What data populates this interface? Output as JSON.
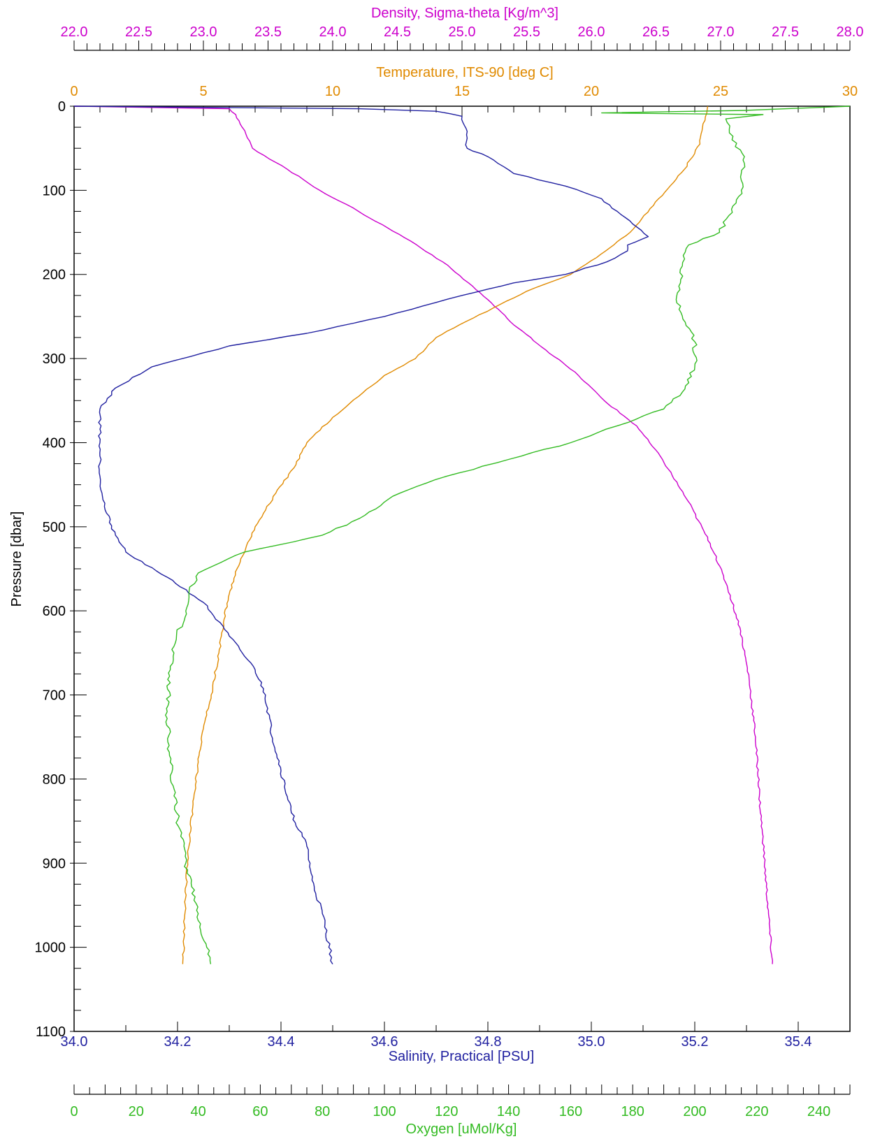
{
  "chart_data": {
    "type": "line",
    "title": "",
    "ylabel": "Pressure [dbar]",
    "ylim": [
      1100,
      0
    ],
    "yticks": [
      0,
      100,
      200,
      300,
      400,
      500,
      600,
      700,
      800,
      900,
      1000,
      1100
    ],
    "axes": {
      "density": {
        "label": "Density, Sigma-theta [Kg/m^3]",
        "range": [
          22.0,
          28.0
        ],
        "ticks": [
          "22.0",
          "22.5",
          "23.0",
          "23.5",
          "24.0",
          "24.5",
          "25.0",
          "25.5",
          "26.0",
          "26.5",
          "27.0",
          "27.5",
          "28.0"
        ],
        "color": "#cc00cc"
      },
      "temperature": {
        "label": "Temperature, ITS-90 [deg C]",
        "range": [
          0,
          30
        ],
        "ticks": [
          "0",
          "5",
          "10",
          "15",
          "20",
          "25",
          "30"
        ],
        "color": "#e08a00"
      },
      "salinity": {
        "label": "Salinity, Practical [PSU]",
        "range": [
          34.0,
          35.5
        ],
        "ticks": [
          "34.0",
          "34.2",
          "34.4",
          "34.6",
          "34.8",
          "35.0",
          "35.2",
          "35.4"
        ],
        "color": "#2020a0"
      },
      "oxygen": {
        "label": "Oxygen [uMol/Kg]",
        "range": [
          0,
          250
        ],
        "ticks": [
          "0",
          "20",
          "40",
          "60",
          "80",
          "100",
          "120",
          "140",
          "160",
          "180",
          "200",
          "220",
          "240"
        ],
        "color": "#33bb22"
      }
    },
    "series": [
      {
        "axis": "density",
        "color": "#cc00cc",
        "points": [
          [
            22.0,
            0
          ],
          [
            23.2,
            3
          ],
          [
            23.25,
            10
          ],
          [
            23.3,
            25
          ],
          [
            23.38,
            50
          ],
          [
            23.65,
            75
          ],
          [
            23.9,
            100
          ],
          [
            24.2,
            125
          ],
          [
            24.6,
            160
          ],
          [
            24.85,
            185
          ],
          [
            25.05,
            210
          ],
          [
            25.2,
            230
          ],
          [
            25.4,
            260
          ],
          [
            25.65,
            290
          ],
          [
            25.9,
            320
          ],
          [
            26.1,
            350
          ],
          [
            26.35,
            380
          ],
          [
            26.55,
            420
          ],
          [
            26.75,
            470
          ],
          [
            26.92,
            520
          ],
          [
            27.05,
            570
          ],
          [
            27.15,
            620
          ],
          [
            27.22,
            680
          ],
          [
            27.27,
            750
          ],
          [
            27.3,
            820
          ],
          [
            27.34,
            900
          ],
          [
            27.37,
            960
          ],
          [
            27.4,
            1020
          ]
        ]
      },
      {
        "axis": "temperature",
        "color": "#e08a00",
        "points": [
          [
            24.5,
            0
          ],
          [
            24.3,
            25
          ],
          [
            24.2,
            45
          ],
          [
            23.6,
            75
          ],
          [
            22.6,
            110
          ],
          [
            21.5,
            150
          ],
          [
            20.2,
            180
          ],
          [
            19.2,
            200
          ],
          [
            17.5,
            220
          ],
          [
            16.2,
            240
          ],
          [
            14.9,
            260
          ],
          [
            14.0,
            275
          ],
          [
            13.2,
            300
          ],
          [
            12.0,
            320
          ],
          [
            11.0,
            345
          ],
          [
            10.0,
            370
          ],
          [
            9.0,
            400
          ],
          [
            8.5,
            430
          ],
          [
            7.8,
            460
          ],
          [
            7.0,
            500
          ],
          [
            6.6,
            530
          ],
          [
            6.3,
            550
          ],
          [
            6.0,
            580
          ],
          [
            5.8,
            610
          ],
          [
            5.6,
            650
          ],
          [
            5.3,
            700
          ],
          [
            5.0,
            740
          ],
          [
            4.8,
            780
          ],
          [
            4.6,
            830
          ],
          [
            4.4,
            890
          ],
          [
            4.3,
            950
          ],
          [
            4.2,
            1020
          ]
        ]
      },
      {
        "axis": "salinity",
        "color": "#2020a0",
        "points": [
          [
            34.0,
            0
          ],
          [
            34.55,
            3
          ],
          [
            34.7,
            6
          ],
          [
            34.75,
            12
          ],
          [
            34.76,
            30
          ],
          [
            34.76,
            50
          ],
          [
            34.8,
            60
          ],
          [
            34.85,
            80
          ],
          [
            34.95,
            95
          ],
          [
            35.02,
            110
          ],
          [
            35.08,
            140
          ],
          [
            35.11,
            155
          ],
          [
            35.07,
            165
          ],
          [
            35.07,
            172
          ],
          [
            35.03,
            185
          ],
          [
            34.95,
            200
          ],
          [
            34.85,
            210
          ],
          [
            34.75,
            225
          ],
          [
            34.6,
            250
          ],
          [
            34.45,
            270
          ],
          [
            34.3,
            285
          ],
          [
            34.15,
            310
          ],
          [
            34.08,
            335
          ],
          [
            34.05,
            360
          ],
          [
            34.05,
            400
          ],
          [
            34.05,
            440
          ],
          [
            34.06,
            480
          ],
          [
            34.08,
            510
          ],
          [
            34.1,
            530
          ],
          [
            34.18,
            560
          ],
          [
            34.25,
            590
          ],
          [
            34.3,
            630
          ],
          [
            34.35,
            670
          ],
          [
            34.37,
            700
          ],
          [
            34.38,
            740
          ],
          [
            34.4,
            790
          ],
          [
            34.42,
            840
          ],
          [
            34.45,
            880
          ],
          [
            34.46,
            920
          ],
          [
            34.48,
            960
          ],
          [
            34.5,
            1020
          ]
        ]
      },
      {
        "axis": "oxygen",
        "color": "#33bb22",
        "points": [
          [
            250,
            0
          ],
          [
            216,
            5
          ],
          [
            170,
            8
          ],
          [
            222,
            10
          ],
          [
            210,
            15
          ],
          [
            212,
            40
          ],
          [
            216,
            60
          ],
          [
            215,
            100
          ],
          [
            211,
            130
          ],
          [
            208,
            150
          ],
          [
            198,
            165
          ],
          [
            196,
            190
          ],
          [
            194,
            230
          ],
          [
            200,
            280
          ],
          [
            200,
            310
          ],
          [
            196,
            340
          ],
          [
            190,
            360
          ],
          [
            175,
            380
          ],
          [
            160,
            400
          ],
          [
            140,
            420
          ],
          [
            120,
            440
          ],
          [
            105,
            460
          ],
          [
            92,
            490
          ],
          [
            80,
            510
          ],
          [
            55,
            530
          ],
          [
            40,
            555
          ],
          [
            37,
            580
          ],
          [
            36,
            600
          ],
          [
            33,
            630
          ],
          [
            31,
            670
          ],
          [
            30,
            720
          ],
          [
            31,
            780
          ],
          [
            33,
            840
          ],
          [
            36,
            900
          ],
          [
            40,
            960
          ],
          [
            44,
            1020
          ]
        ]
      }
    ]
  }
}
